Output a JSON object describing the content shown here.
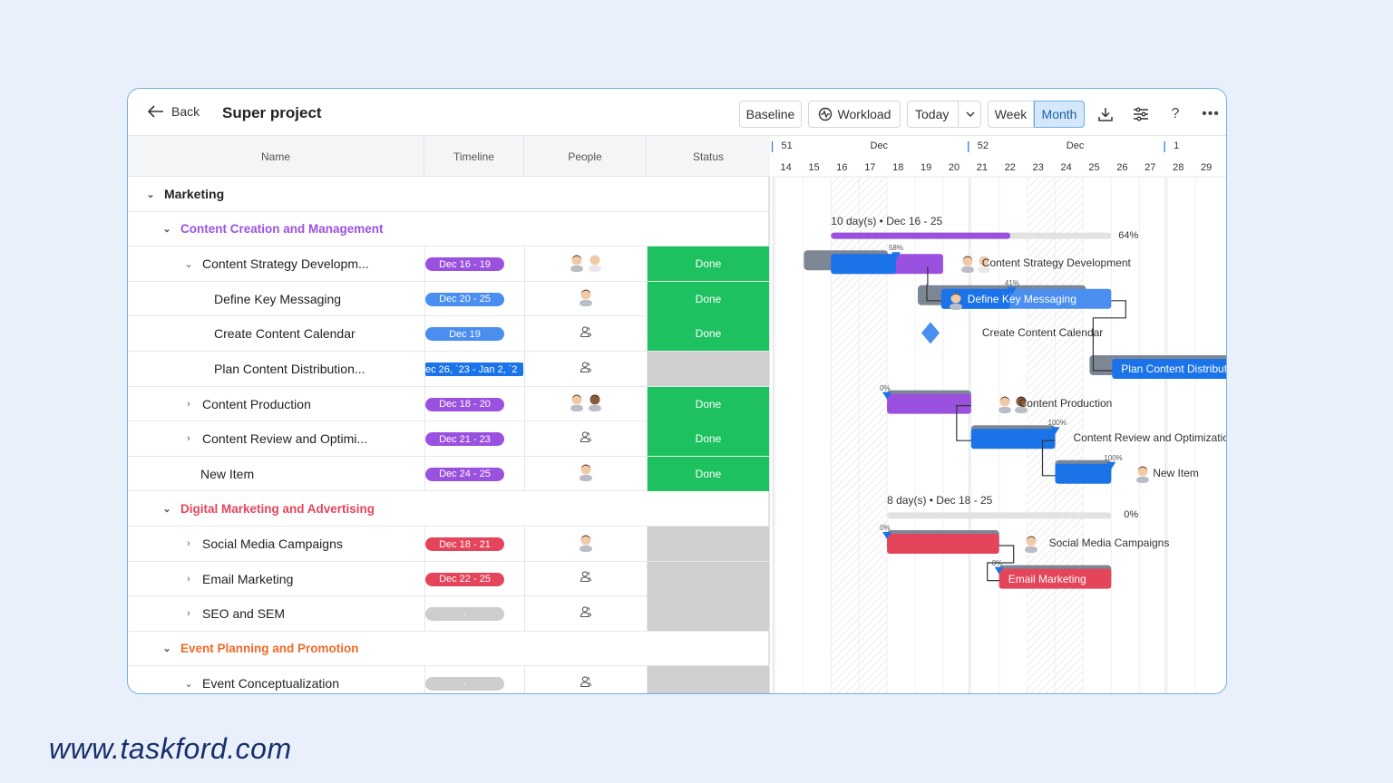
{
  "toolbar": {
    "back_label": "Back",
    "title": "Super project",
    "baseline_label": "Baseline",
    "workload_label": "Workload",
    "today_label": "Today",
    "week_label": "Week",
    "month_label": "Month"
  },
  "columns": {
    "name": "Name",
    "timeline": "Timeline",
    "people": "People",
    "status": "Status"
  },
  "groups": {
    "marketing": "Marketing",
    "content": "Content Creation and Management",
    "digital": "Digital Marketing and Advertising",
    "event": "Event Planning and Promotion"
  },
  "rows": [
    {
      "name": "Content Strategy Developm...",
      "timeline": "Dec 16 - 19",
      "status": "Done"
    },
    {
      "name": "Define Key Messaging",
      "timeline": "Dec 20 - 25",
      "status": "Done"
    },
    {
      "name": "Create Content Calendar",
      "timeline": "Dec 19",
      "status": "Done"
    },
    {
      "name": "Plan Content Distribution...",
      "timeline": "ec 26, `23 - Jan 2, `2",
      "status": ""
    },
    {
      "name": "Content Production",
      "timeline": "Dec 18 - 20",
      "status": "Done"
    },
    {
      "name": "Content Review and Optimi...",
      "timeline": "Dec 21 - 23",
      "status": "Done"
    },
    {
      "name": "New Item",
      "timeline": "Dec 24 - 25",
      "status": "Done"
    },
    {
      "name": "Social Media Campaigns",
      "timeline": "Dec 18 - 21",
      "status": ""
    },
    {
      "name": "Email Marketing",
      "timeline": "Dec 22 - 25",
      "status": ""
    },
    {
      "name": "SEO and SEM",
      "timeline": "-",
      "status": ""
    },
    {
      "name": "Event Conceptualization",
      "timeline": "-",
      "status": ""
    }
  ],
  "gantt": {
    "weeks": [
      {
        "week": "51",
        "month": "Dec"
      },
      {
        "week": "52",
        "month": "Dec"
      },
      {
        "week": "1",
        "month": ""
      }
    ],
    "days": [
      "14",
      "15",
      "16",
      "17",
      "18",
      "19",
      "20",
      "21",
      "22",
      "23",
      "24",
      "25",
      "26",
      "27",
      "28",
      "29"
    ],
    "group1_summary": "10 day(s) • Dec 16 - 25",
    "group1_pct": "64%",
    "group1_progress": 0.64,
    "group2_summary": "8 day(s) • Dec 18 - 25",
    "group2_pct": "0%",
    "group2_progress": 0,
    "labels": {
      "strategy": "Content Strategy Development",
      "messaging": "Define Key Messaging",
      "calendar": "Create Content Calendar",
      "distribution": "Plan Content Distributio",
      "production": "Content Production",
      "review": "Content Review and Optimization",
      "newitem": "New Item",
      "social": "Social Media Campaigns",
      "email": "Email Marketing"
    },
    "pcts": {
      "strategy": "58%",
      "messaging": "41%",
      "production": "0%",
      "review": "100%",
      "newitem": "100%",
      "social": "0%",
      "email": "0%"
    }
  },
  "colors": {
    "purple": "#9b51e0",
    "blue": "#1a73e8",
    "red": "#e5455a",
    "green": "#1ec15f",
    "orange": "#f06a2a",
    "gray": "#cdcdcd"
  },
  "footer": {
    "url": "www.taskford.com"
  }
}
